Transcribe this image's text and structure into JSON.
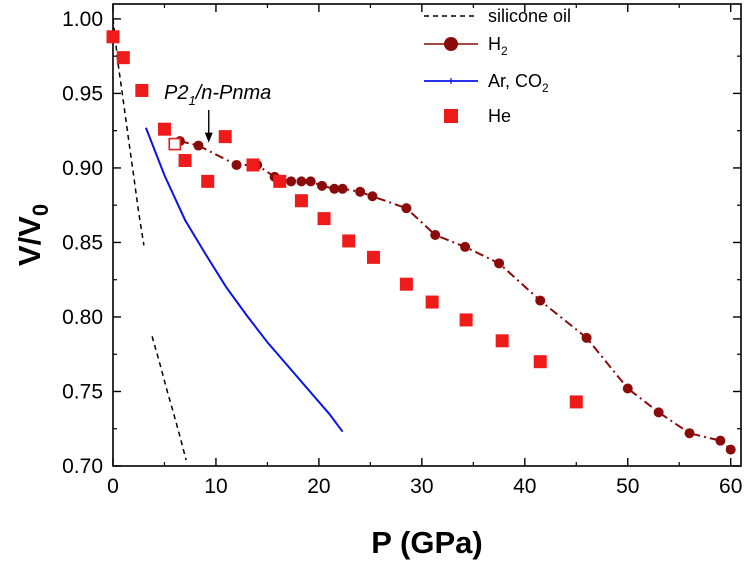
{
  "chart_data": {
    "type": "scatter",
    "title": "",
    "xlabel": "P (GPa)",
    "ylabel_main": "V/V",
    "ylabel_sub": "0",
    "xlim": [
      0,
      61
    ],
    "ylim": [
      0.7,
      1.01
    ],
    "xticks": [
      "0",
      "10",
      "20",
      "30",
      "40",
      "50",
      "60"
    ],
    "yticks": [
      "0.70",
      "0.75",
      "0.80",
      "0.85",
      "0.90",
      "0.95",
      "1.00"
    ],
    "legend_position": "top-right",
    "annotation": {
      "main": "P2",
      "sub": "1",
      "rest": "/n-Pnma",
      "x": 9.3,
      "y": 0.915
    },
    "series": [
      {
        "name_main": "silicone oil",
        "name_sub": "",
        "name_rest": "",
        "style": "dashed",
        "color": "#000000",
        "segments": [
          [
            [
              0,
              1.0
            ],
            [
              0.5,
              0.97
            ],
            [
              1.0,
              0.945
            ],
            [
              1.5,
              0.92
            ],
            [
              2.0,
              0.895
            ],
            [
              2.5,
              0.87
            ],
            [
              3.0,
              0.848
            ]
          ],
          [
            [
              3.8,
              0.787
            ],
            [
              4.5,
              0.77
            ],
            [
              5.2,
              0.752
            ],
            [
              5.9,
              0.735
            ],
            [
              6.5,
              0.72
            ],
            [
              7.1,
              0.704
            ]
          ]
        ]
      },
      {
        "name_main": "H",
        "name_sub": "2",
        "name_rest": "",
        "style": "dash-dot-marker",
        "color": "#8b0a0a",
        "points": [
          [
            6.5,
            0.918
          ],
          [
            8.3,
            0.915
          ],
          [
            12.0,
            0.902
          ],
          [
            14.0,
            0.902
          ],
          [
            15.7,
            0.894
          ],
          [
            17.3,
            0.891
          ],
          [
            18.3,
            0.891
          ],
          [
            19.2,
            0.891
          ],
          [
            20.3,
            0.888
          ],
          [
            21.5,
            0.886
          ],
          [
            22.3,
            0.886
          ],
          [
            24.0,
            0.884
          ],
          [
            25.2,
            0.881
          ],
          [
            28.5,
            0.873
          ],
          [
            31.3,
            0.855
          ],
          [
            34.2,
            0.847
          ],
          [
            37.5,
            0.836
          ],
          [
            41.5,
            0.811
          ],
          [
            46.0,
            0.786
          ],
          [
            50.0,
            0.752
          ],
          [
            53.0,
            0.736
          ],
          [
            56.0,
            0.722
          ],
          [
            59.0,
            0.717
          ],
          [
            60.0,
            0.711
          ]
        ]
      },
      {
        "name_main": "Ar, CO",
        "name_sub": "2",
        "name_rest": "",
        "style": "solid",
        "color": "#0a14e6",
        "line": [
          [
            3.2,
            0.927
          ],
          [
            5.0,
            0.895
          ],
          [
            7.0,
            0.865
          ],
          [
            9.0,
            0.842
          ],
          [
            11.0,
            0.82
          ],
          [
            13.0,
            0.801
          ],
          [
            15.0,
            0.783
          ],
          [
            17.0,
            0.767
          ],
          [
            19.0,
            0.751
          ],
          [
            21.0,
            0.735
          ],
          [
            22.3,
            0.723
          ]
        ]
      },
      {
        "name_main": "He",
        "name_sub": "",
        "name_rest": "",
        "style": "square-marker",
        "color": "#ef1a1a",
        "points": [
          [
            0,
            0.988
          ],
          [
            1.0,
            0.974
          ],
          [
            2.8,
            0.952
          ],
          [
            5.0,
            0.926
          ],
          [
            7.0,
            0.905
          ],
          [
            9.2,
            0.891
          ],
          [
            10.9,
            0.921
          ],
          [
            13.6,
            0.902
          ],
          [
            16.2,
            0.891
          ],
          [
            18.3,
            0.878
          ],
          [
            20.5,
            0.866
          ],
          [
            22.9,
            0.851
          ],
          [
            25.3,
            0.84
          ],
          [
            28.5,
            0.822
          ],
          [
            31.0,
            0.81
          ],
          [
            34.3,
            0.798
          ],
          [
            37.8,
            0.784
          ],
          [
            41.5,
            0.77
          ],
          [
            45.0,
            0.743
          ]
        ],
        "open_points": [
          [
            6.0,
            0.916
          ]
        ]
      }
    ]
  }
}
